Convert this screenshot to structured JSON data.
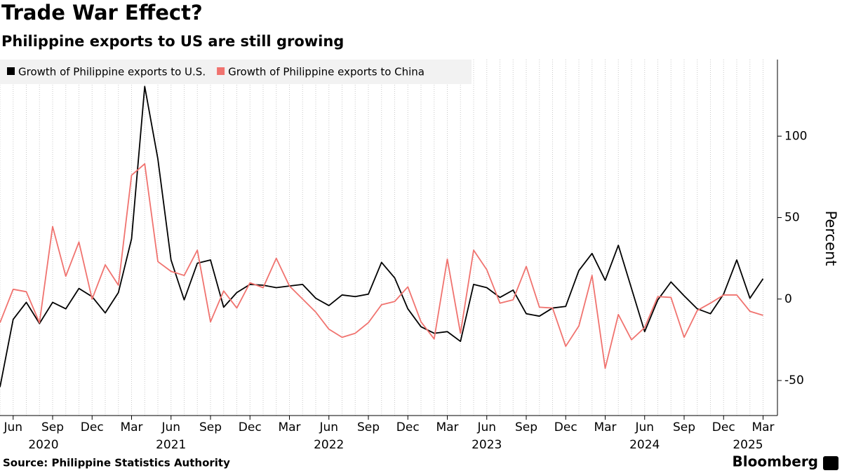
{
  "chart_data": {
    "type": "line",
    "title": "Trade War Effect?",
    "subtitle": "Philippine exports to US are still growing",
    "y_label": "Percent",
    "source": "Source: Philippine Statistics Authority",
    "brand": "Bloomberg",
    "x": [
      "2020-05",
      "2020-06",
      "2020-07",
      "2020-08",
      "2020-09",
      "2020-10",
      "2020-11",
      "2020-12",
      "2021-01",
      "2021-02",
      "2021-03",
      "2021-04",
      "2021-05",
      "2021-06",
      "2021-07",
      "2021-08",
      "2021-09",
      "2021-10",
      "2021-11",
      "2021-12",
      "2022-01",
      "2022-02",
      "2022-03",
      "2022-04",
      "2022-05",
      "2022-06",
      "2022-07",
      "2022-08",
      "2022-09",
      "2022-10",
      "2022-11",
      "2022-12",
      "2023-01",
      "2023-02",
      "2023-03",
      "2023-04",
      "2023-05",
      "2023-06",
      "2023-07",
      "2023-08",
      "2023-09",
      "2023-10",
      "2023-11",
      "2023-12",
      "2024-01",
      "2024-02",
      "2024-03",
      "2024-04",
      "2024-05",
      "2024-06",
      "2024-07",
      "2024-08",
      "2024-09",
      "2024-10",
      "2024-11",
      "2024-12",
      "2025-01",
      "2025-02",
      "2025-03"
    ],
    "series": [
      {
        "name": "Growth of Philippine exports to U.S.",
        "color": "#000000",
        "values": [
          -54,
          -12.5,
          -2,
          -15,
          -2,
          -6,
          6.5,
          1.5,
          -8.5,
          4,
          37,
          130.5,
          86,
          24,
          -0.5,
          22,
          24,
          -5,
          4,
          9,
          8.5,
          7,
          8,
          9,
          0.5,
          -4,
          2.5,
          1.5,
          3,
          22.5,
          13,
          -6,
          -17,
          -21,
          -20,
          -26,
          9,
          7,
          1,
          5.5,
          -9,
          -10.5,
          -5.5,
          -4.5,
          17.5,
          28,
          11.5,
          33,
          6.5,
          -20,
          -0.5,
          10.5,
          2,
          -6,
          -9,
          3,
          24,
          0.5,
          12.5
        ]
      },
      {
        "name": "Growth of Philippine exports to China",
        "color": "#f0736f",
        "values": [
          -14.5,
          6,
          4.5,
          -14.5,
          44.5,
          14,
          35,
          0,
          21,
          8.5,
          76,
          83,
          23,
          17,
          14.5,
          30,
          -14,
          5,
          -5.5,
          10,
          7,
          25,
          8,
          0,
          -8,
          -18.5,
          -23.5,
          -21,
          -14.5,
          -3.5,
          -1.5,
          7.5,
          -14,
          -24.5,
          24.5,
          -21,
          30,
          18,
          -2.5,
          -0.5,
          20,
          -5,
          -5.5,
          -29,
          -16.5,
          14.5,
          -42.5,
          -9.5,
          -25,
          -17.5,
          1.5,
          1,
          -23.5,
          -7,
          -2.5,
          2.5,
          2.5,
          -7.5,
          -10
        ]
      }
    ],
    "ylim": [
      -71.5,
      147
    ],
    "yticks": [
      -50,
      0,
      50,
      100
    ],
    "xticks": [
      {
        "value": "2020-06",
        "label": "Jun"
      },
      {
        "value": "2020-09",
        "label": "Sep"
      },
      {
        "value": "2020-12",
        "label": "Dec"
      },
      {
        "value": "2021-03",
        "label": "Mar"
      },
      {
        "value": "2021-06",
        "label": "Jun"
      },
      {
        "value": "2021-09",
        "label": "Sep"
      },
      {
        "value": "2021-12",
        "label": "Dec"
      },
      {
        "value": "2022-03",
        "label": "Mar"
      },
      {
        "value": "2022-06",
        "label": "Jun"
      },
      {
        "value": "2022-09",
        "label": "Sep"
      },
      {
        "value": "2022-12",
        "label": "Dec"
      },
      {
        "value": "2023-03",
        "label": "Mar"
      },
      {
        "value": "2023-06",
        "label": "Jun"
      },
      {
        "value": "2023-09",
        "label": "Sep"
      },
      {
        "value": "2023-12",
        "label": "Dec"
      },
      {
        "value": "2024-03",
        "label": "Mar"
      },
      {
        "value": "2024-06",
        "label": "Jun"
      },
      {
        "value": "2024-09",
        "label": "Sep"
      },
      {
        "value": "2024-12",
        "label": "Dec"
      },
      {
        "value": "2025-03",
        "label": "Mar"
      }
    ],
    "year_labels": [
      {
        "value": "2020-06",
        "label": "2020"
      },
      {
        "value": "2021-06",
        "label": "2021"
      },
      {
        "value": "2022-06",
        "label": "2022"
      },
      {
        "value": "2023-06",
        "label": "2023"
      },
      {
        "value": "2024-06",
        "label": "2024"
      },
      {
        "value": "2025-03",
        "label": "2025"
      }
    ],
    "grid": true,
    "legend": "top-left"
  }
}
